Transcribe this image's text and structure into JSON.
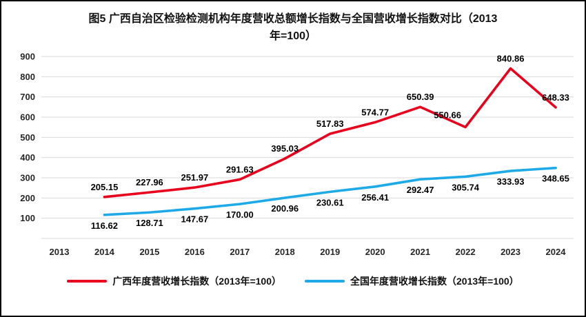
{
  "colors": {
    "guangxi_line": "#e8001c",
    "national_line": "#1eaae7",
    "gridline": "#d9d9d9",
    "axis_text": "#262626",
    "data_label": "#000000",
    "frame_border": "#000000"
  },
  "chart_data": {
    "type": "line",
    "title": "图5  广西自治区检验检测机构年度营收总额增长指数与全国营收增长指数对比（2013年=100）",
    "categories": [
      "2013",
      "2014",
      "2015",
      "2016",
      "2017",
      "2018",
      "2019",
      "2020",
      "2021",
      "2022",
      "2023",
      "2024"
    ],
    "series": [
      {
        "name": "广西年度营收增长指数（2013年=100）",
        "color": "#e8001c",
        "label_position": "above",
        "values": [
          null,
          205.15,
          227.96,
          251.97,
          291.63,
          395.03,
          517.83,
          574.77,
          650.39,
          550.66,
          840.86,
          648.33
        ]
      },
      {
        "name": "全国年度营收增长指数（2013年=100）",
        "color": "#1eaae7",
        "label_position": "below",
        "values": [
          null,
          116.62,
          128.71,
          147.67,
          170.0,
          200.96,
          230.61,
          256.41,
          292.47,
          305.74,
          333.93,
          348.65
        ]
      }
    ],
    "ylim": [
      0,
      900
    ],
    "yticks": [
      100,
      200,
      300,
      400,
      500,
      600,
      700,
      800,
      900
    ],
    "grid": true,
    "legend_position": "bottom",
    "label_decimals": 2
  }
}
